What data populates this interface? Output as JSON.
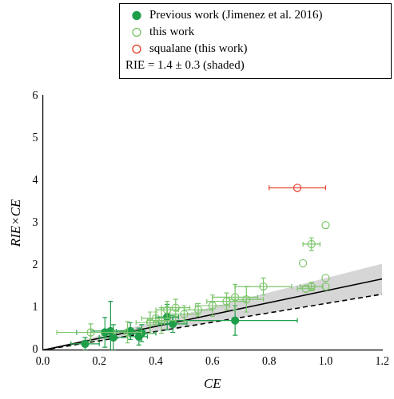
{
  "chart_data": {
    "type": "scatter",
    "x_label": "CE",
    "y_label": "RIE×CE",
    "xlim": [
      0,
      1.2
    ],
    "xticks": [
      {
        "value": 0,
        "label": "0.0"
      },
      {
        "value": 0.2,
        "label": "0.2"
      },
      {
        "value": 0.4,
        "label": "0.4"
      },
      {
        "value": 0.6,
        "label": "0.6"
      },
      {
        "value": 0.8,
        "label": "0.8"
      },
      {
        "value": 1.0,
        "label": "1.0"
      },
      {
        "value": 1.2,
        "label": "1.2"
      }
    ],
    "ylim": [
      0,
      6
    ],
    "yticks": [
      0,
      1,
      2,
      3,
      4,
      5,
      6
    ],
    "grid": false,
    "legend": "top-right",
    "annotations": [
      "RIE = 1.4 ± 0.3 (shaded)"
    ],
    "series": [
      {
        "name": "Previous work (Jimenez et al. 2016)",
        "color": "#1f9e4a",
        "marker": "filled_circle",
        "x": [
          0.15,
          0.22,
          0.24,
          0.25,
          0.31,
          0.34,
          0.35,
          0.44,
          0.46,
          0.68
        ],
        "values": [
          0.15,
          0.42,
          0.45,
          0.3,
          0.45,
          0.32,
          0.4,
          0.78,
          0.62,
          0.7
        ],
        "x_err": [
          0.05,
          0.1,
          0.07,
          0.05,
          0.05,
          0.03,
          0.05,
          0.04,
          0.05,
          0.22
        ],
        "y_err": [
          0.15,
          0.35,
          0.7,
          0.3,
          0.2,
          0.2,
          0.2,
          0.3,
          0.2,
          0.35
        ]
      },
      {
        "name": "this work",
        "color": "#7cc56b",
        "marker": "open_circle",
        "x": [
          0.17,
          0.3,
          0.38,
          0.4,
          0.42,
          0.44,
          0.47,
          0.5,
          0.55,
          0.6,
          0.65,
          0.68,
          0.72,
          0.78,
          0.92,
          0.93,
          0.95,
          0.95,
          1.0,
          1.0,
          1.0
        ],
        "values": [
          0.42,
          0.42,
          0.65,
          0.75,
          0.7,
          0.95,
          1.0,
          0.85,
          0.95,
          1.05,
          1.15,
          1.25,
          1.2,
          1.5,
          2.05,
          1.45,
          2.5,
          1.5,
          2.95,
          1.7,
          1.5
        ],
        "x_err": [
          0.12,
          0.05,
          0.05,
          0.05,
          0.05,
          0.04,
          0.05,
          0.05,
          0.05,
          0.06,
          0.07,
          0.08,
          0.06,
          0.1,
          0,
          0.03,
          0.03,
          0.04,
          0,
          0,
          0
        ],
        "y_err": [
          0.2,
          0.25,
          0.25,
          0.15,
          0.3,
          0.2,
          0.2,
          0.2,
          0.15,
          0.25,
          0.2,
          0.3,
          0.3,
          0.2,
          0,
          0,
          0.15,
          0.1,
          0,
          0,
          0
        ]
      },
      {
        "name": "squalane (this work)",
        "color": "#e4432b",
        "marker": "open_circle",
        "x": [
          0.9
        ],
        "values": [
          3.83
        ],
        "x_err": [
          0.1
        ],
        "y_err": [
          0
        ]
      },
      {
        "type": "band",
        "color": "#d6d6d6",
        "x": [
          0,
          1.2
        ],
        "lower": [
          0,
          1.32
        ],
        "upper": [
          0,
          2.04
        ]
      },
      {
        "type": "line",
        "color": "#000000",
        "line_style": "solid",
        "x": [
          0,
          1.2
        ],
        "values": [
          0,
          1.68
        ]
      },
      {
        "type": "line",
        "color": "#000000",
        "line_style": "dashed",
        "x": [
          0,
          1.2
        ],
        "values": [
          0,
          1.32
        ]
      }
    ]
  }
}
